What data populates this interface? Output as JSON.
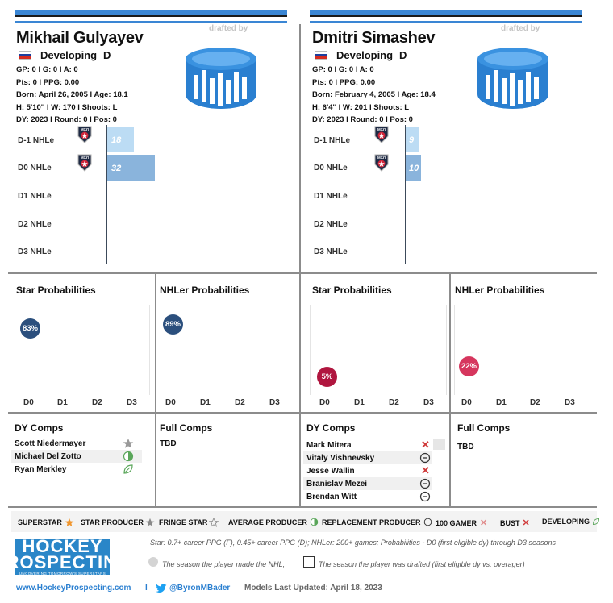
{
  "drafted_by_label": "drafted by",
  "row_labels": [
    "D-1 NHLe",
    "D0 NHLe",
    "D1 NHLe",
    "D2 NHLe",
    "D3 NHLe"
  ],
  "league_badge": "MXЛ",
  "sections": {
    "star": "Star Probabilities",
    "nhler": "NHLer Probabilities",
    "dy_comps": "DY Comps",
    "full_comps": "Full Comps"
  },
  "ticks": [
    "D0",
    "D1",
    "D2",
    "D3"
  ],
  "players": [
    {
      "name": "Mikhail Gulyayev",
      "status": "Developing",
      "position": "D",
      "stats": [
        "GP: 0 l G: 0 l A: 0",
        "Pts: 0 l PPG: 0.00",
        "Born: April 26, 2005 l Age: 18.1",
        "H: 5'10'' l W: 170 l Shoots: L",
        "DY: 2023 l Round: 0 l Pos: 0"
      ],
      "nhle": [
        18,
        32
      ],
      "star_prob": "83%",
      "nhler_prob": "89%",
      "dy_comps": [
        {
          "name": "Scott Niedermayer",
          "icon": "star-icon"
        },
        {
          "name": "Michael Del Zotto",
          "icon": "half-circle-icon"
        },
        {
          "name": "Ryan Merkley",
          "icon": "leaf-icon"
        }
      ],
      "full_comps": "TBD"
    },
    {
      "name": "Dmitri Simashev",
      "status": "Developing",
      "position": "D",
      "stats": [
        "GP: 0 l G: 0 l A: 0",
        "Pts: 0 l PPG: 0.00",
        "Born: February 4, 2005 l Age: 18.4",
        "H: 6'4'' l W: 201 l Shoots: L",
        "DY: 2023 l Round: 0 l Pos: 0"
      ],
      "nhle": [
        9,
        10
      ],
      "star_prob": "5%",
      "nhler_prob": "22%",
      "dy_comps": [
        {
          "name": "Mark Mitera",
          "icon": "x-icon"
        },
        {
          "name": "Vitaly Vishnevsky",
          "icon": "minus-circle-icon"
        },
        {
          "name": "Jesse Wallin",
          "icon": "x-icon"
        },
        {
          "name": "Branislav Mezei",
          "icon": "minus-circle-icon"
        },
        {
          "name": "Brendan Witt",
          "icon": "minus-circle-icon"
        }
      ],
      "full_comps": "TBD"
    }
  ],
  "legend": [
    "SUPERSTAR",
    "STAR PRODUCER",
    "FRINGE STAR",
    "AVERAGE PRODUCER",
    "REPLACEMENT PRODUCER",
    "100 GAMER",
    "BUST",
    "DEVELOPING"
  ],
  "notes": {
    "definitions": "Star: 0.7+ career PPG (F), 0.45+ career PPG (D); NHLer: 200+ games; Probabilities - D0 (first eligible dy) through D3 seasons",
    "made_nhl": "The season the player made the NHL;",
    "drafted": "The season the player was drafted (first eligible dy vs. overager)"
  },
  "logo": {
    "line1": "HOCKEY",
    "line2": "PROSPECTING",
    "tagline": "UNCOVERING TOMORROW'S SUPERSTARS"
  },
  "footer": {
    "website": "www.HockeyProspecting.com",
    "separator": "l",
    "twitter": "@ByronMBader",
    "updated": "Models Last Updated: April 18, 2023"
  },
  "colors": {
    "accent_blue": "#3a86d4",
    "bar_light": "#bcdcf4",
    "bar_mid": "#8ab4dc",
    "dot_dark_blue": "#2b4f7d",
    "dot_crimson": "#b0163f",
    "dot_pink": "#d6365e"
  }
}
